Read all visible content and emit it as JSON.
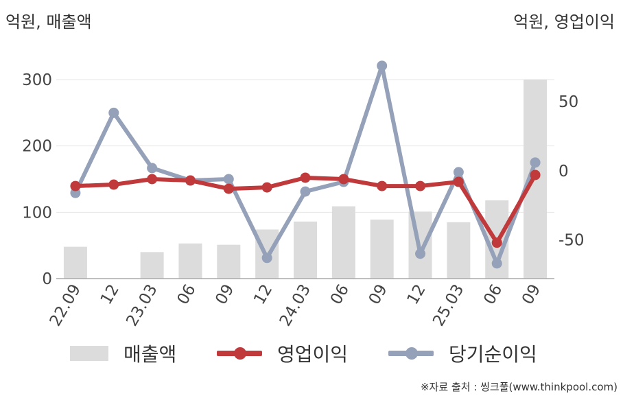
{
  "header": {
    "left_unit": "억원, 매출액",
    "right_unit": "억원, 영업이익"
  },
  "footer": {
    "source": "※자료 출처 : 씽크풀(www.thinkpool.com)"
  },
  "legend": {
    "items": [
      {
        "label": "매출액"
      },
      {
        "label": "영업이익"
      },
      {
        "label": "당기순이익"
      }
    ]
  },
  "colors": {
    "bar": "#dcdcdc",
    "operating_profit": "#c0393b",
    "net_income": "#94a1b8",
    "grid": "#e6e6e6",
    "axis": "#aaaaaa"
  },
  "chart_data": {
    "type": "bar+line",
    "categories": [
      "22.09",
      "12",
      "23.03",
      "06",
      "09",
      "12",
      "24.03",
      "06",
      "09",
      "12",
      "25.03",
      "06",
      "09"
    ],
    "left_axis": {
      "label": "억원, 매출액",
      "ylim": [
        0,
        300
      ],
      "ticks": [
        0,
        100,
        200,
        300
      ]
    },
    "right_axis": {
      "label": "억원, 영업이익",
      "ylim": [
        -78,
        66
      ],
      "ticks": [
        -50,
        0,
        50
      ]
    },
    "grid": true,
    "legend_position": "bottom",
    "series": [
      {
        "name": "매출액",
        "type": "bar",
        "axis": "left",
        "values": [
          48,
          0,
          40,
          53,
          51,
          74,
          86,
          109,
          89,
          101,
          85,
          118,
          300
        ]
      },
      {
        "name": "영업이익",
        "type": "line",
        "axis": "right",
        "values": [
          -11,
          -10,
          -6,
          -7,
          -13,
          -12,
          -5,
          -6,
          -11,
          -11,
          -8,
          -52,
          -3
        ]
      },
      {
        "name": "당기순이익",
        "type": "line",
        "axis": "right",
        "values": [
          -16,
          42,
          2,
          -7,
          -6,
          -63,
          -15,
          -8,
          76,
          -60,
          -1,
          -67,
          6
        ]
      }
    ]
  }
}
